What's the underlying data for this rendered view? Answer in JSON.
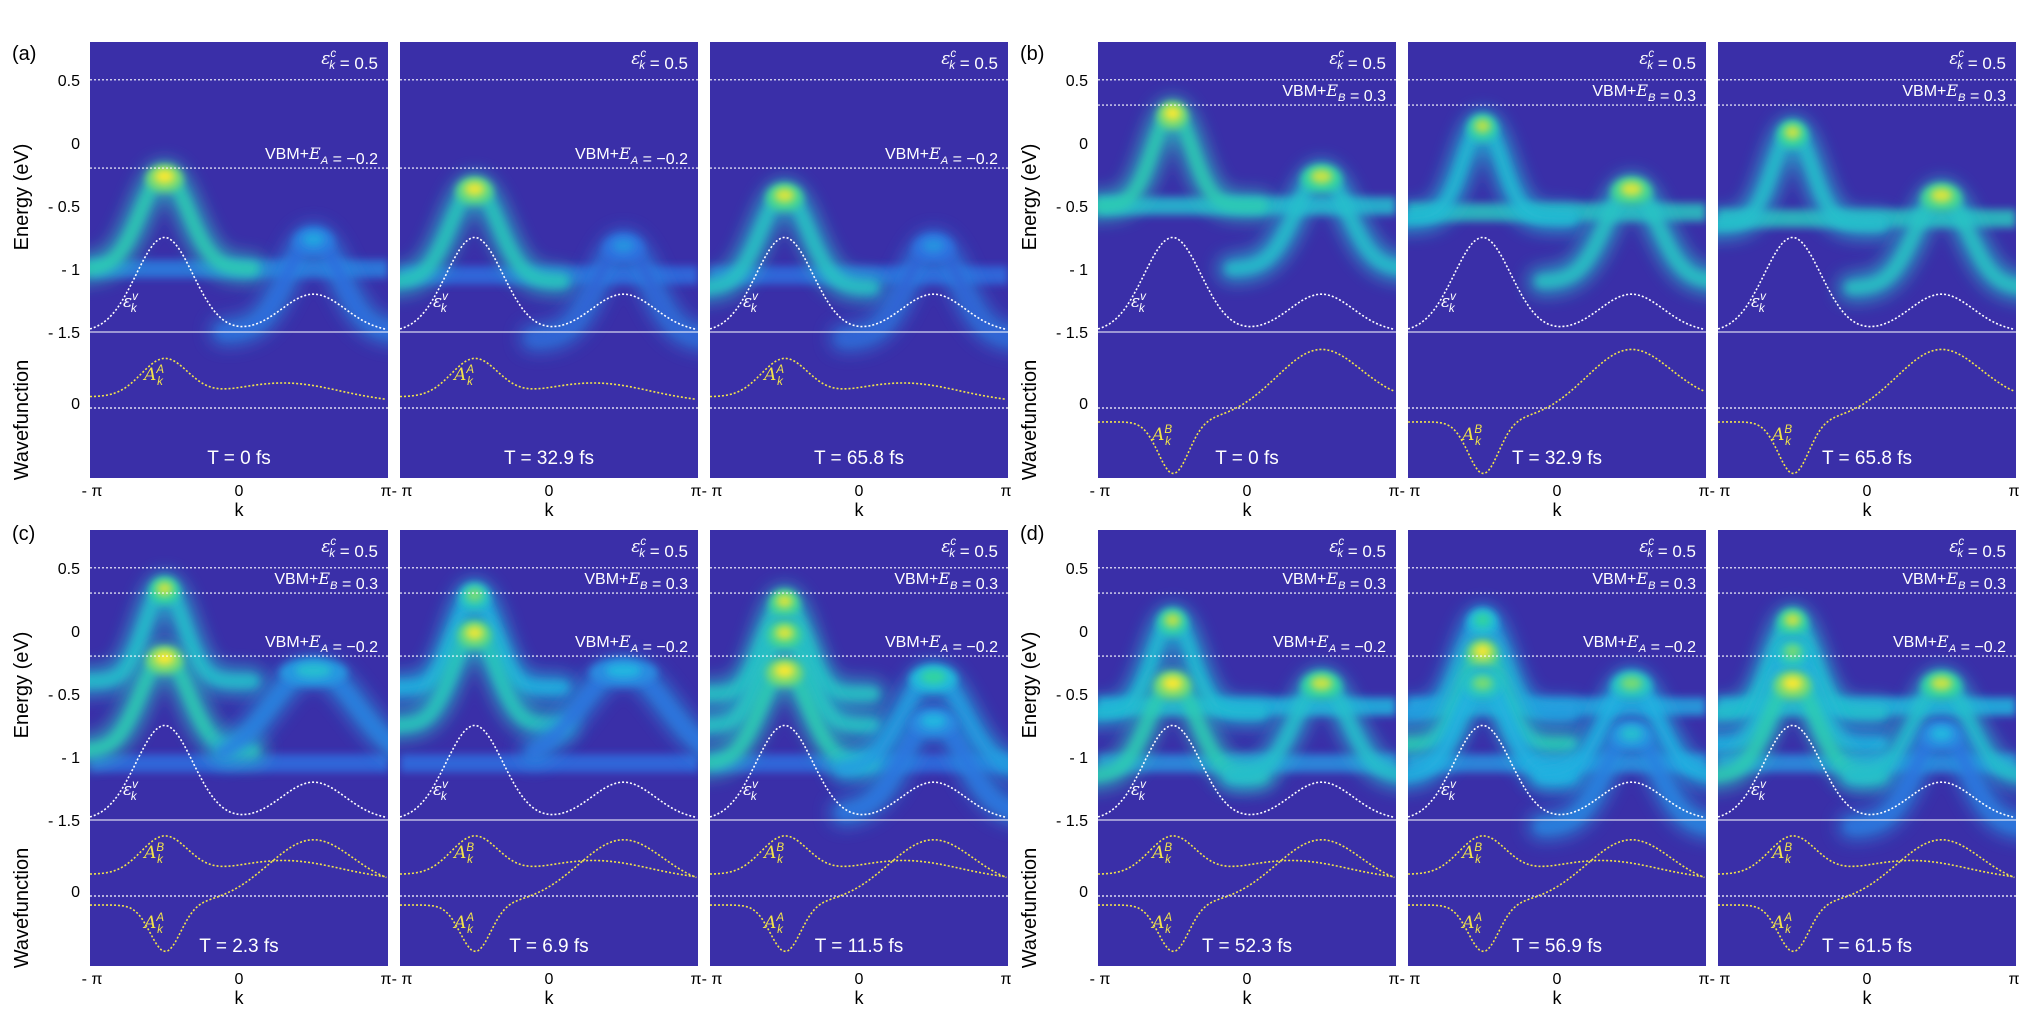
{
  "colors": {
    "background": "#3a2fa8",
    "dashed_line": "#ffffff",
    "valence_curve": "#ffffff",
    "wavefunction_curve": "#f2e34a",
    "label_white": "#ffffff",
    "label_yellow": "#f2e34a",
    "colormap": [
      "#3a2fa8",
      "#2e6ee0",
      "#21b6e0",
      "#31d4a0",
      "#b8e04a",
      "#f8e830"
    ]
  },
  "chart_data": {
    "type": "heatmap",
    "title": "",
    "xlabel": "k",
    "ylabel_energy": "Energy (eV)",
    "ylabel_wave": "Wavefunction",
    "xlim": [
      -3.1416,
      3.1416
    ],
    "ylim_energy": [
      -1.5,
      0.8
    ],
    "xtick_labels": [
      "- π",
      "0",
      "π"
    ],
    "energy_ticks": [
      0.5,
      0,
      -0.5,
      -1,
      -1.5
    ],
    "energy_tick_labels": [
      "0.5",
      "0",
      "- 0.5",
      "- 1",
      "- 1.5"
    ],
    "wave_tick_labels": [
      "0"
    ],
    "conduction_label": "ε_k^c = 0.5",
    "valence_label": "ε_k^v",
    "conduction_energy": 0.5,
    "valence_band": {
      "peak_k": -1.57,
      "peak_energy": -0.75,
      "second_peak_k": 1.57,
      "second_peak_energy": -1.2,
      "min_energy": -1.5
    },
    "groups": [
      {
        "panel_label": "(a)",
        "vbm_lines": [
          {
            "text": "VBM+E_A = −0.2",
            "energy": -0.2
          }
        ],
        "wavefunctions": [
          {
            "label": "A_k^A",
            "shape": "A"
          }
        ],
        "subplots": [
          {
            "time": "T = 0 fs",
            "bands": [
              {
                "k": -1.57,
                "e": -0.25,
                "amp": 1.0,
                "width": 0.55
              },
              {
                "k": 1.57,
                "e": -0.75,
                "amp": 0.35,
                "width": 0.6
              }
            ],
            "flat": [
              {
                "e": -1.0,
                "amp": 0.25
              }
            ]
          },
          {
            "time": "T = 32.9 fs",
            "bands": [
              {
                "k": -1.57,
                "e": -0.35,
                "amp": 0.95,
                "width": 0.55
              },
              {
                "k": 1.57,
                "e": -0.8,
                "amp": 0.3,
                "width": 0.6
              }
            ],
            "flat": [
              {
                "e": -1.05,
                "amp": 0.2
              }
            ]
          },
          {
            "time": "T = 65.8 fs",
            "bands": [
              {
                "k": -1.57,
                "e": -0.4,
                "amp": 0.9,
                "width": 0.55
              },
              {
                "k": 1.57,
                "e": -0.8,
                "amp": 0.3,
                "width": 0.6
              }
            ],
            "flat": [
              {
                "e": -1.05,
                "amp": 0.2
              }
            ]
          }
        ]
      },
      {
        "panel_label": "(b)",
        "vbm_lines": [
          {
            "text": "VBM+E_B = 0.3",
            "energy": 0.3
          }
        ],
        "wavefunctions": [
          {
            "label": "A_k^B",
            "shape": "B"
          }
        ],
        "subplots": [
          {
            "time": "T = 0 fs",
            "bands": [
              {
                "k": -1.57,
                "e": 0.25,
                "amp": 1.0,
                "width": 0.45
              },
              {
                "k": 1.57,
                "e": -0.25,
                "amp": 0.85,
                "width": 0.6
              }
            ],
            "flat": [
              {
                "e": -0.5,
                "amp": 0.45
              }
            ]
          },
          {
            "time": "T = 32.9 fs",
            "bands": [
              {
                "k": -1.57,
                "e": 0.15,
                "amp": 0.8,
                "width": 0.45
              },
              {
                "k": 1.57,
                "e": -0.35,
                "amp": 0.9,
                "width": 0.6
              }
            ],
            "flat": [
              {
                "e": -0.55,
                "amp": 0.5
              }
            ]
          },
          {
            "time": "T = 65.8 fs",
            "bands": [
              {
                "k": -1.57,
                "e": 0.1,
                "amp": 0.85,
                "width": 0.45
              },
              {
                "k": 1.57,
                "e": -0.4,
                "amp": 0.9,
                "width": 0.6
              }
            ],
            "flat": [
              {
                "e": -0.6,
                "amp": 0.5
              }
            ]
          }
        ]
      },
      {
        "panel_label": "(c)",
        "vbm_lines": [
          {
            "text": "VBM+E_B = 0.3",
            "energy": 0.3
          },
          {
            "text": "VBM+E_A = −0.2",
            "energy": -0.2
          }
        ],
        "wavefunctions": [
          {
            "label": "A_k^B",
            "shape": "B"
          },
          {
            "label": "A_k^A",
            "shape": "A"
          }
        ],
        "subplots": [
          {
            "time": "T = 2.3 fs",
            "bands": [
              {
                "k": -1.57,
                "e": 0.35,
                "amp": 0.85,
                "width": 0.45
              },
              {
                "k": -1.57,
                "e": -0.2,
                "amp": 1.0,
                "width": 0.55
              },
              {
                "k": 1.57,
                "e": -0.3,
                "amp": 0.45,
                "width": 1.0
              }
            ],
            "flat": [
              {
                "e": -1.05,
                "amp": 0.2
              }
            ]
          },
          {
            "time": "T = 6.9 fs",
            "bands": [
              {
                "k": -1.57,
                "e": 0.3,
                "amp": 0.7,
                "width": 0.45
              },
              {
                "k": -1.57,
                "e": 0.0,
                "amp": 0.95,
                "width": 0.5
              },
              {
                "k": 1.57,
                "e": -0.3,
                "amp": 0.4,
                "width": 1.0
              }
            ],
            "flat": [
              {
                "e": -1.05,
                "amp": 0.2
              }
            ]
          },
          {
            "time": "T = 11.5 fs",
            "bands": [
              {
                "k": -1.57,
                "e": 0.25,
                "amp": 0.9,
                "width": 0.45
              },
              {
                "k": -1.57,
                "e": 0.0,
                "amp": 0.9,
                "width": 0.5
              },
              {
                "k": -1.57,
                "e": -0.3,
                "amp": 1.0,
                "width": 0.55
              },
              {
                "k": 1.57,
                "e": -0.35,
                "amp": 0.6,
                "width": 0.7
              },
              {
                "k": 1.57,
                "e": -0.7,
                "amp": 0.4,
                "width": 0.7
              }
            ],
            "flat": [
              {
                "e": -1.05,
                "amp": 0.2
              }
            ]
          }
        ]
      },
      {
        "panel_label": "(d)",
        "vbm_lines": [
          {
            "text": "VBM+E_B = 0.3",
            "energy": 0.3
          },
          {
            "text": "VBM+E_A = −0.2",
            "energy": -0.2
          }
        ],
        "wavefunctions": [
          {
            "label": "A_k^B",
            "shape": "B"
          },
          {
            "label": "A_k^A",
            "shape": "A"
          }
        ],
        "subplots": [
          {
            "time": "T = 52.3 fs",
            "bands": [
              {
                "k": -1.57,
                "e": 0.1,
                "amp": 0.8,
                "width": 0.45
              },
              {
                "k": -1.57,
                "e": -0.4,
                "amp": 1.0,
                "width": 0.55
              },
              {
                "k": 1.57,
                "e": -0.4,
                "amp": 0.85,
                "width": 0.6
              }
            ],
            "flat": [
              {
                "e": -0.6,
                "amp": 0.4
              },
              {
                "e": -1.05,
                "amp": 0.3
              }
            ]
          },
          {
            "time": "T = 56.9 fs",
            "bands": [
              {
                "k": -1.57,
                "e": 0.1,
                "amp": 0.6,
                "width": 0.45
              },
              {
                "k": -1.57,
                "e": -0.15,
                "amp": 1.0,
                "width": 0.45
              },
              {
                "k": -1.57,
                "e": -0.4,
                "amp": 0.7,
                "width": 0.55
              },
              {
                "k": 1.57,
                "e": -0.4,
                "amp": 0.7,
                "width": 0.6
              },
              {
                "k": 1.57,
                "e": -0.8,
                "amp": 0.45,
                "width": 0.6
              }
            ],
            "flat": [
              {
                "e": -0.6,
                "amp": 0.35
              },
              {
                "e": -1.05,
                "amp": 0.3
              }
            ]
          },
          {
            "time": "T = 61.5 fs",
            "bands": [
              {
                "k": -1.57,
                "e": 0.1,
                "amp": 0.85,
                "width": 0.45
              },
              {
                "k": -1.57,
                "e": -0.15,
                "amp": 0.7,
                "width": 0.45
              },
              {
                "k": -1.57,
                "e": -0.4,
                "amp": 1.0,
                "width": 0.55
              },
              {
                "k": 1.57,
                "e": -0.4,
                "amp": 0.85,
                "width": 0.6
              },
              {
                "k": 1.57,
                "e": -0.8,
                "amp": 0.4,
                "width": 0.6
              }
            ],
            "flat": [
              {
                "e": -0.6,
                "amp": 0.4
              },
              {
                "e": -1.05,
                "amp": 0.3
              }
            ]
          }
        ]
      }
    ]
  }
}
